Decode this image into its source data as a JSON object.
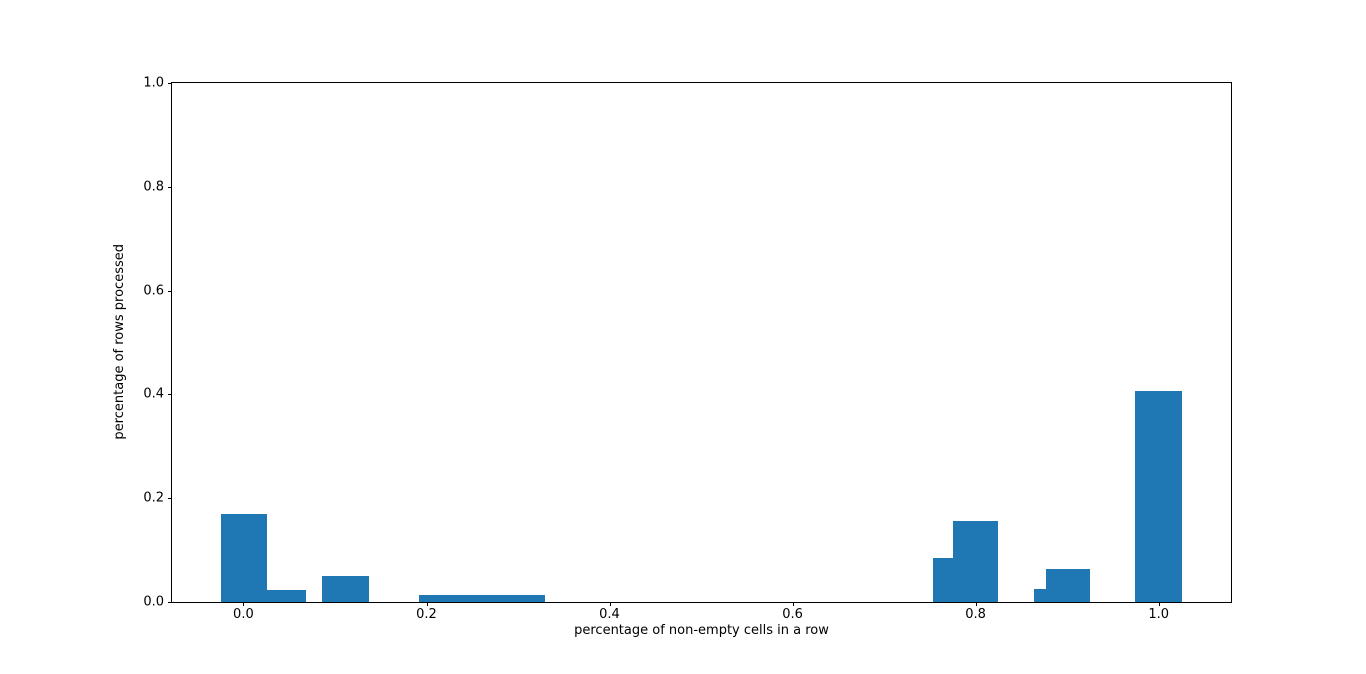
{
  "figure": {
    "background_color": "#ffffff",
    "axes_frame_color": "#000000",
    "text_color": "#000000"
  },
  "chart_data": {
    "type": "bar",
    "subtype": "histogram",
    "title": "",
    "xlabel": "percentage of non-empty cells in a row",
    "ylabel": "percentage of rows processed",
    "bar_color": "#1f77b4",
    "grid": false,
    "legend": null,
    "xlim": [
      -0.078,
      1.079
    ],
    "ylim": [
      0,
      1.0
    ],
    "x_ticks": [
      {
        "value": 0.0,
        "label": "0.0"
      },
      {
        "value": 0.2,
        "label": "0.2"
      },
      {
        "value": 0.4,
        "label": "0.4"
      },
      {
        "value": 0.6,
        "label": "0.6"
      },
      {
        "value": 0.8,
        "label": "0.8"
      },
      {
        "value": 1.0,
        "label": "1.0"
      }
    ],
    "y_ticks": [
      {
        "value": 0.0,
        "label": "0.0"
      },
      {
        "value": 0.2,
        "label": "0.2"
      },
      {
        "value": 0.4,
        "label": "0.4"
      },
      {
        "value": 0.6,
        "label": "0.6"
      },
      {
        "value": 0.8,
        "label": "0.8"
      },
      {
        "value": 1.0,
        "label": "1.0"
      }
    ],
    "bars": [
      {
        "x_start": -0.025,
        "x_end": 0.026,
        "height": 0.17
      },
      {
        "x_start": 0.026,
        "x_end": 0.068,
        "height": 0.024
      },
      {
        "x_start": 0.086,
        "x_end": 0.137,
        "height": 0.051
      },
      {
        "x_start": 0.192,
        "x_end": 0.33,
        "height": 0.014
      },
      {
        "x_start": 0.753,
        "x_end": 0.775,
        "height": 0.085
      },
      {
        "x_start": 0.775,
        "x_end": 0.825,
        "height": 0.156
      },
      {
        "x_start": 0.864,
        "x_end": 0.877,
        "height": 0.025
      },
      {
        "x_start": 0.877,
        "x_end": 0.925,
        "height": 0.064
      },
      {
        "x_start": 0.974,
        "x_end": 1.026,
        "height": 0.406
      }
    ]
  }
}
